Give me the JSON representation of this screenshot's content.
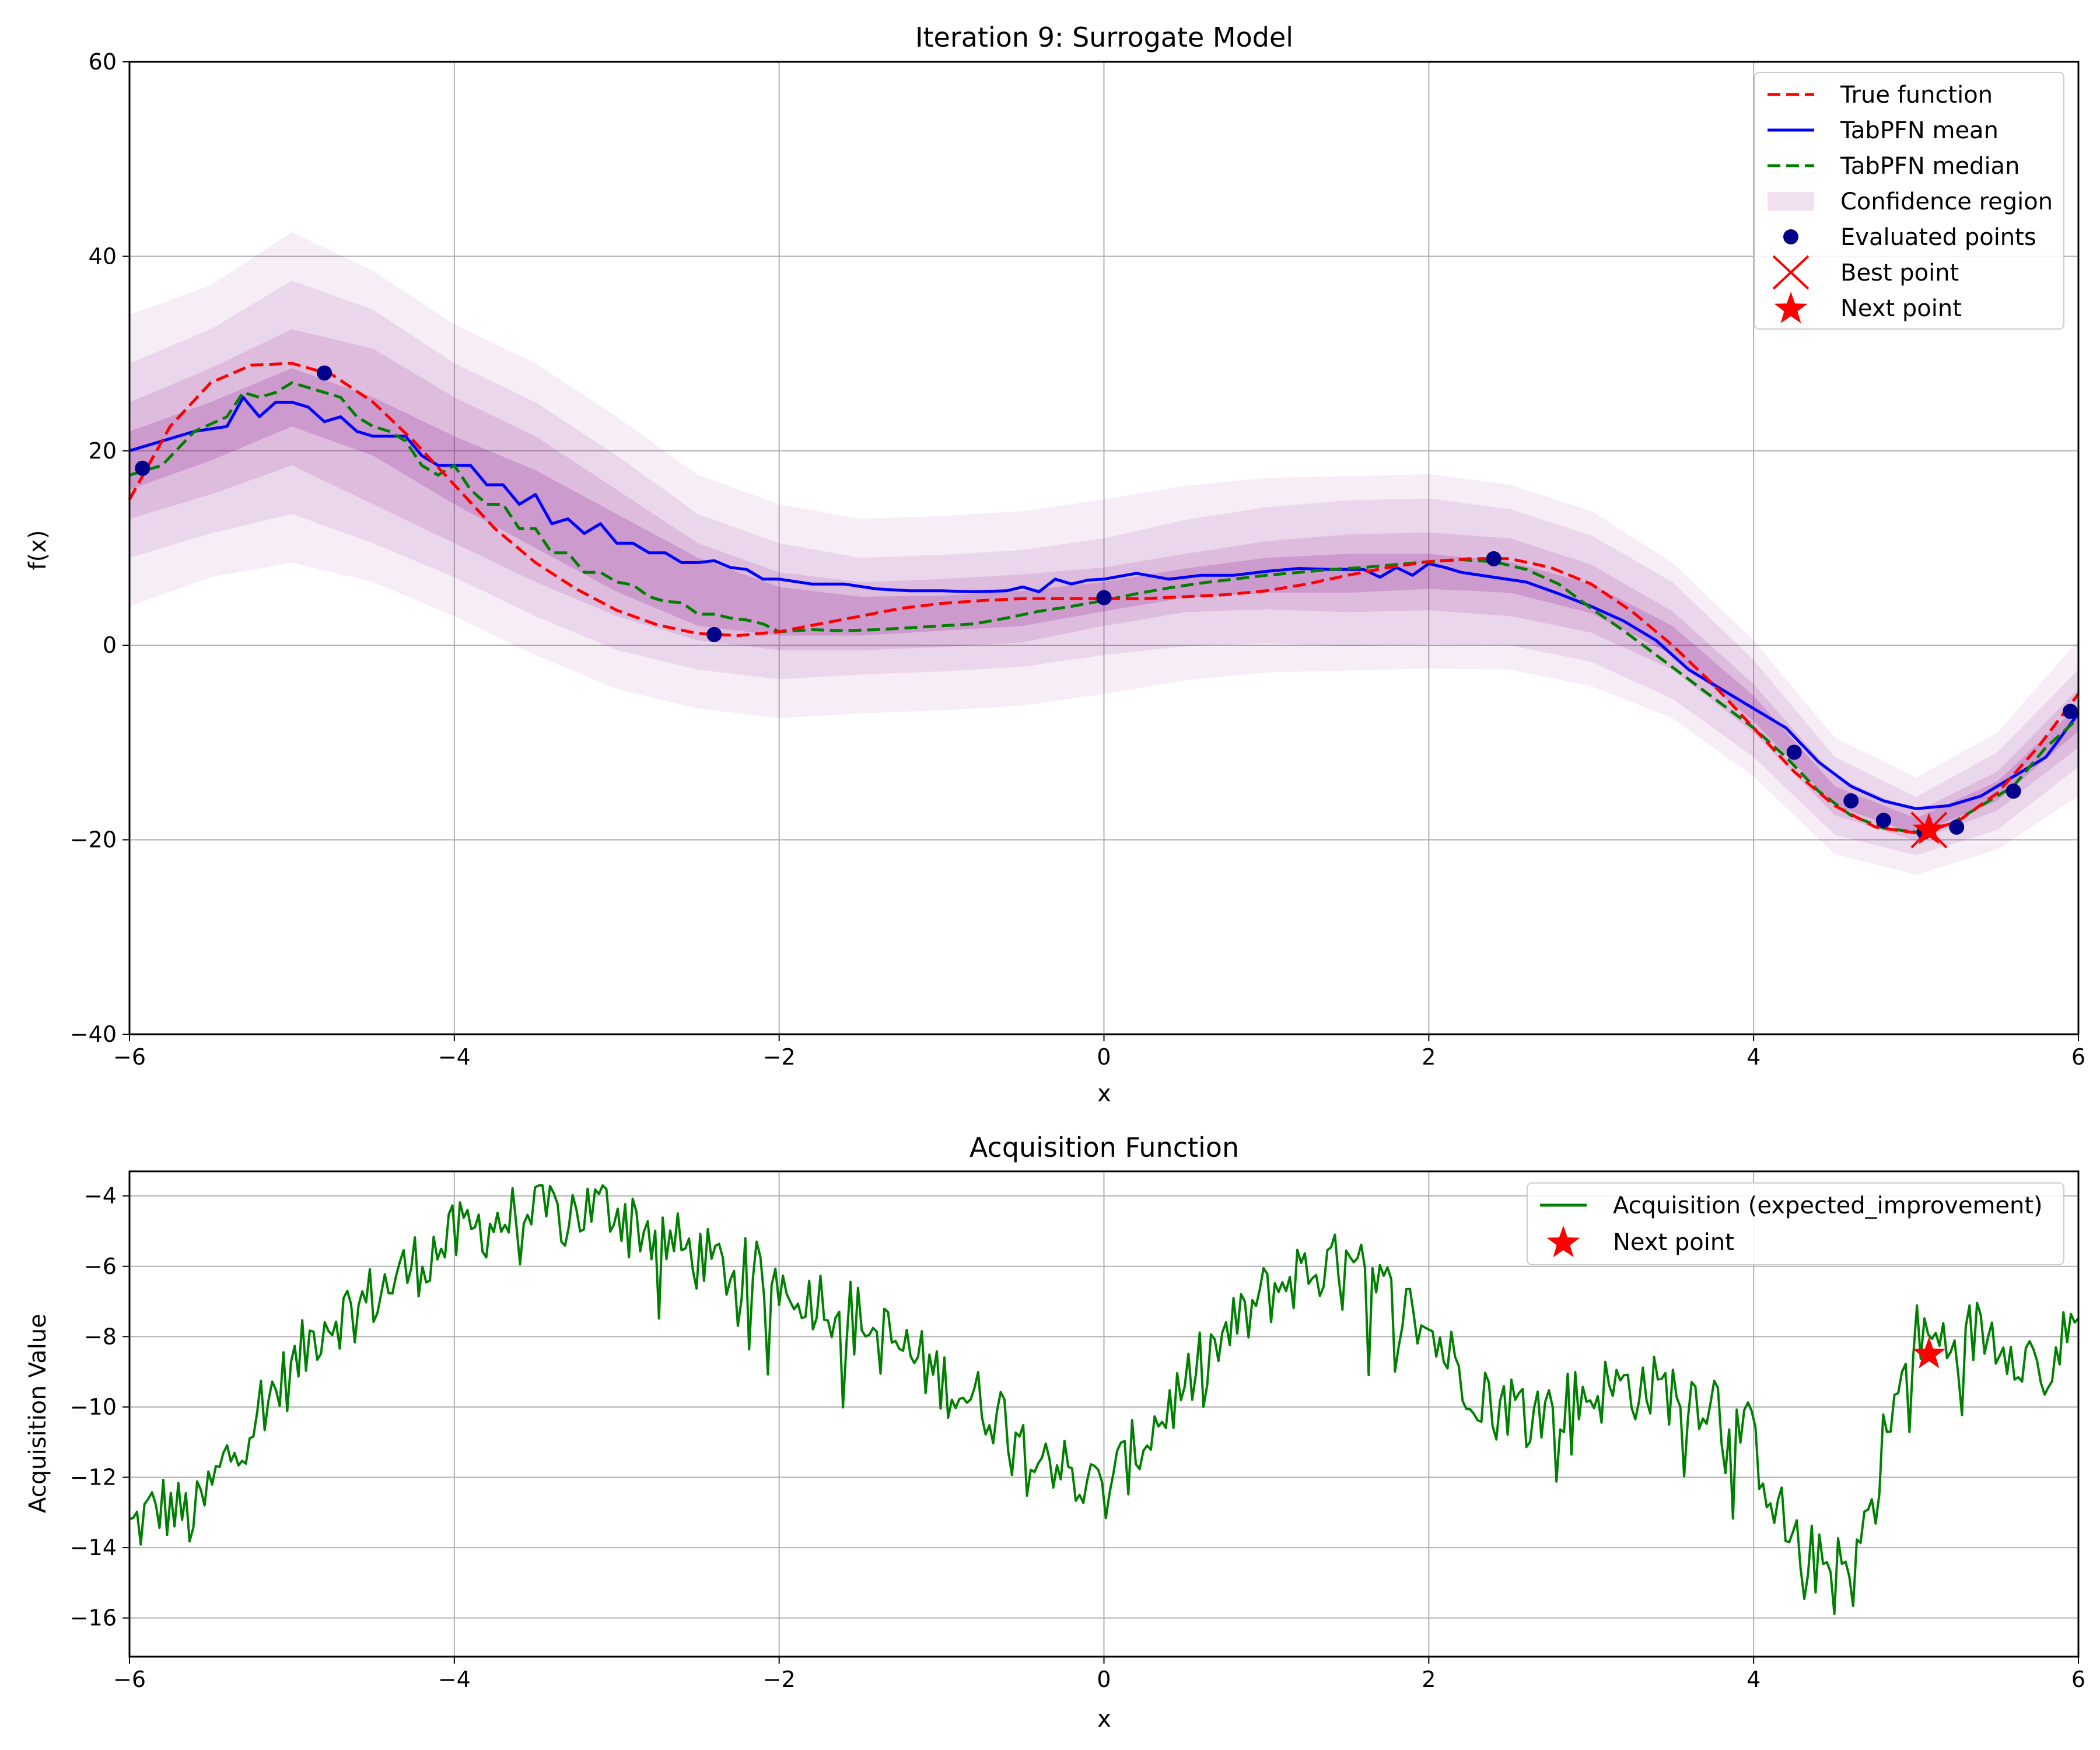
{
  "chart_data": [
    {
      "type": "line",
      "title": "Iteration 9: Surrogate Model",
      "xlabel": "x",
      "ylabel": "f(x)",
      "xlim": [
        -6,
        6
      ],
      "ylim": [
        -40,
        60
      ],
      "xticks": [
        -6,
        -4,
        -2,
        0,
        2,
        4,
        6
      ],
      "yticks": [
        -40,
        -20,
        0,
        20,
        40,
        60
      ],
      "xtick_labels": [
        "−6",
        "−4",
        "−2",
        "0",
        "2",
        "4",
        "6"
      ],
      "ytick_labels": [
        "−40",
        "−20",
        "0",
        "20",
        "40",
        "60"
      ],
      "grid": true,
      "legend_position": "top-right",
      "legend": [
        {
          "label": "True function",
          "kind": "line",
          "color": "#ff0000",
          "dash": "dashed"
        },
        {
          "label": "TabPFN mean",
          "kind": "line",
          "color": "#0000ff",
          "dash": "solid"
        },
        {
          "label": "TabPFN median",
          "kind": "line",
          "color": "#008000",
          "dash": "dashed"
        },
        {
          "label": "Confidence region",
          "kind": "area",
          "color": "#800080"
        },
        {
          "label": "Evaluated points",
          "kind": "dot",
          "color": "#00008b"
        },
        {
          "label": "Best point",
          "kind": "x",
          "color": "#ff0000"
        },
        {
          "label": "Next point",
          "kind": "star",
          "color": "#ff0000"
        }
      ],
      "series": {
        "true_function": {
          "x": [
            -6,
            -5.75,
            -5.5,
            -5.25,
            -5,
            -4.75,
            -4.5,
            -4.25,
            -4,
            -3.75,
            -3.5,
            -3.25,
            -3,
            -2.75,
            -2.5,
            -2.25,
            -2,
            -1.75,
            -1.5,
            -1.25,
            -1,
            -0.75,
            -0.5,
            -0.25,
            0,
            0.25,
            0.5,
            0.75,
            1,
            1.25,
            1.5,
            1.75,
            2,
            2.25,
            2.5,
            2.75,
            3,
            3.25,
            3.5,
            3.75,
            4,
            4.25,
            4.5,
            4.75,
            5,
            5.25,
            5.5,
            5.75,
            6
          ],
          "y": [
            15,
            22.5,
            27,
            28.8,
            29,
            27.8,
            25,
            21,
            16.5,
            12,
            8.5,
            5.8,
            3.6,
            2.1,
            1.2,
            1.0,
            1.4,
            2.2,
            3.0,
            3.8,
            4.3,
            4.6,
            4.8,
            4.8,
            4.8,
            4.8,
            5.0,
            5.2,
            5.6,
            6.3,
            7.2,
            8.0,
            8.6,
            8.9,
            8.9,
            8.0,
            6.3,
            3.5,
            0.0,
            -4.0,
            -8.5,
            -13.0,
            -16.5,
            -18.7,
            -19.3,
            -18.2,
            -15.2,
            -10.5,
            -5.0
          ]
        },
        "mean": {
          "x": [
            -6,
            -5.8,
            -5.6,
            -5.4,
            -5.3,
            -5.2,
            -5.1,
            -5.0,
            -4.9,
            -4.8,
            -4.7,
            -4.6,
            -4.5,
            -4.4,
            -4.3,
            -4.2,
            -4.1,
            -4.0,
            -3.9,
            -3.8,
            -3.7,
            -3.6,
            -3.5,
            -3.4,
            -3.3,
            -3.2,
            -3.1,
            -3.0,
            -2.9,
            -2.8,
            -2.7,
            -2.6,
            -2.5,
            -2.4,
            -2.3,
            -2.2,
            -2.1,
            -2.0,
            -1.8,
            -1.6,
            -1.4,
            -1.2,
            -1.0,
            -0.8,
            -0.6,
            -0.5,
            -0.4,
            -0.3,
            -0.2,
            -0.1,
            0.0,
            0.2,
            0.4,
            0.6,
            0.8,
            1.0,
            1.2,
            1.4,
            1.6,
            1.7,
            1.8,
            1.9,
            2.0,
            2.1,
            2.2,
            2.4,
            2.6,
            2.8,
            3.0,
            3.2,
            3.4,
            3.6,
            3.8,
            4.0,
            4.2,
            4.4,
            4.6,
            4.8,
            5.0,
            5.2,
            5.4,
            5.6,
            5.8,
            6.0
          ],
          "y": [
            20,
            21,
            22,
            22.5,
            25.5,
            23.5,
            25,
            25,
            24.5,
            23,
            23.5,
            22,
            21.5,
            21.5,
            21.5,
            19.5,
            18.5,
            18.5,
            18.5,
            16.5,
            16.5,
            14.5,
            15.5,
            12.5,
            13,
            11.5,
            12.5,
            10.5,
            10.5,
            9.5,
            9.5,
            8.5,
            8.5,
            8.7,
            8.0,
            7.8,
            6.8,
            6.8,
            6.3,
            6.3,
            5.8,
            5.6,
            5.6,
            5.5,
            5.6,
            6.0,
            5.5,
            6.8,
            6.3,
            6.7,
            6.8,
            7.4,
            6.8,
            7.2,
            7.2,
            7.6,
            7.9,
            7.8,
            7.8,
            7.0,
            8.0,
            7.2,
            8.4,
            8.0,
            7.5,
            7.0,
            6.5,
            5.3,
            4.0,
            2.5,
            0.5,
            -2.5,
            -4.5,
            -6.5,
            -8.5,
            -12,
            -14.5,
            -16,
            -16.8,
            -16.5,
            -15.5,
            -13.5,
            -11.5,
            -7.0
          ]
        },
        "median": {
          "x": [
            -6,
            -5.8,
            -5.6,
            -5.4,
            -5.3,
            -5.2,
            -5.1,
            -5.0,
            -4.9,
            -4.8,
            -4.7,
            -4.6,
            -4.5,
            -4.4,
            -4.3,
            -4.2,
            -4.1,
            -4.0,
            -3.9,
            -3.8,
            -3.7,
            -3.6,
            -3.5,
            -3.4,
            -3.3,
            -3.2,
            -3.1,
            -3.0,
            -2.9,
            -2.8,
            -2.7,
            -2.6,
            -2.5,
            -2.4,
            -2.3,
            -2.2,
            -2.1,
            -2.0,
            -1.8,
            -1.6,
            -1.4,
            -1.2,
            -1.0,
            -0.8,
            -0.6,
            -0.4,
            -0.2,
            0.0,
            0.2,
            0.4,
            0.6,
            0.8,
            1.0,
            1.2,
            1.4,
            1.6,
            1.8,
            2.0,
            2.2,
            2.4,
            2.6,
            2.8,
            3.0,
            3.2,
            3.4,
            3.6,
            3.8,
            4.0,
            4.2,
            4.4,
            4.6,
            4.8,
            5.0,
            5.2,
            5.4,
            5.6,
            5.8,
            6.0
          ],
          "y": [
            17.5,
            18.5,
            22,
            23.5,
            26,
            25.5,
            26,
            27,
            26.5,
            26,
            25.5,
            23.5,
            22.5,
            22,
            21,
            18.5,
            17.5,
            18.5,
            16,
            14.5,
            14.5,
            12,
            12,
            9.5,
            9.5,
            7.5,
            7.5,
            6.5,
            6.2,
            5.0,
            4.5,
            4.4,
            3.2,
            3.2,
            2.8,
            2.6,
            2.2,
            1.4,
            1.6,
            1.5,
            1.6,
            1.8,
            2.0,
            2.2,
            2.8,
            3.5,
            4.0,
            4.6,
            5.3,
            5.9,
            6.4,
            6.8,
            7.2,
            7.5,
            7.8,
            8.0,
            8.3,
            8.6,
            8.8,
            8.6,
            7.8,
            6.3,
            3.8,
            1.5,
            -1.0,
            -3.5,
            -6.0,
            -8.5,
            -11.5,
            -15.0,
            -17.5,
            -18.8,
            -19.2,
            -18.5,
            -16.5,
            -14.5,
            -10.5,
            -7.5
          ]
        },
        "evaluated_points": {
          "x": [
            -5.92,
            -4.8,
            -2.4,
            0.0,
            2.4,
            4.25,
            4.6,
            4.8,
            5.05,
            5.25,
            5.6,
            5.95
          ],
          "y": [
            18.2,
            28.0,
            1.1,
            4.9,
            8.9,
            -11.0,
            -16.0,
            -18.0,
            -19.2,
            -18.7,
            -15.0,
            -6.8
          ]
        },
        "best_point": {
          "x": 5.08,
          "y": -19.0
        },
        "next_point": {
          "x": 5.08,
          "y": -19.0
        },
        "confidence_bands": {
          "x": [
            -6,
            -5.5,
            -5,
            -4.5,
            -4,
            -3.5,
            -3,
            -2.5,
            -2,
            -1.5,
            -1,
            -0.5,
            0,
            0.5,
            1,
            1.5,
            2,
            2.5,
            3,
            3.5,
            4,
            4.5,
            5,
            5.5,
            6
          ],
          "center": [
            19,
            22,
            25.5,
            22.5,
            18,
            14,
            9.5,
            5.5,
            3.5,
            3,
            3.3,
            3.8,
            5,
            6.4,
            7.2,
            7.4,
            7.6,
            7.0,
            4.8,
            0.5,
            -6.5,
            -15.5,
            -18.6,
            -15,
            -7.5
          ],
          "half_widths": [
            [
              3,
              3,
              3,
              3,
              3.5,
              4,
              4,
              3.5,
              2.5,
              2,
              1.8,
              1.8,
              1.5,
              1.5,
              1.8,
              2.0,
              1.8,
              1.6,
              1.5,
              1.5,
              1.3,
              1.0,
              0.8,
              1.0,
              1.3
            ],
            [
              6,
              6.5,
              7,
              8,
              7.5,
              7.5,
              6.5,
              5,
              4,
              3.5,
              3.5,
              3.5,
              3,
              3,
              3.5,
              4,
              4,
              4,
              3.5,
              3,
              2.5,
              2,
              1.5,
              2,
              3
            ],
            [
              10,
              10.5,
              12,
              12,
              11,
              11,
              10,
              8,
              7,
              6,
              6,
              6,
              6,
              6.5,
              7,
              7.5,
              7.5,
              7,
              6.5,
              6,
              5,
              4,
              3,
              4,
              5
            ],
            [
              15,
              15,
              17,
              16,
              15,
              15,
              14,
              12,
              11,
              10,
              10,
              10,
              10,
              10,
              10,
              10,
              10,
              9.5,
              9,
              8,
              7,
              6,
              5,
              6,
              8
            ]
          ],
          "opacities": [
            0.18,
            0.12,
            0.09,
            0.07
          ]
        }
      }
    },
    {
      "type": "line",
      "title": "Acquisition Function",
      "xlabel": "x",
      "ylabel": "Acquisition Value",
      "xlim": [
        -6,
        6
      ],
      "ylim": [
        -17.1,
        -3.3
      ],
      "xticks": [
        -6,
        -4,
        -2,
        0,
        2,
        4,
        6
      ],
      "yticks": [
        -16,
        -14,
        -12,
        -10,
        -8,
        -6,
        -4
      ],
      "xtick_labels": [
        "−6",
        "−4",
        "−2",
        "0",
        "2",
        "4",
        "6"
      ],
      "ytick_labels": [
        "−16",
        "−14",
        "−12",
        "−10",
        "−8",
        "−6",
        "−4"
      ],
      "grid": true,
      "legend_position": "top-right",
      "legend": [
        {
          "label": "Acquisition (expected_improvement)",
          "kind": "line",
          "color": "#008000",
          "dash": "solid"
        },
        {
          "label": "Next point",
          "kind": "star",
          "color": "#ff0000"
        }
      ],
      "series": {
        "acquisition": {
          "anchors_x": [
            -6,
            -5.8,
            -5.6,
            -5.4,
            -5.2,
            -5.0,
            -4.8,
            -4.6,
            -4.4,
            -4.2,
            -4.0,
            -3.8,
            -3.6,
            -3.4,
            -3.2,
            -3.0,
            -2.8,
            -2.6,
            -2.4,
            -2.2,
            -2.0,
            -1.8,
            -1.6,
            -1.4,
            -1.2,
            -1.0,
            -0.8,
            -0.6,
            -0.4,
            -0.2,
            0.0,
            0.2,
            0.4,
            0.6,
            0.8,
            1.0,
            1.2,
            1.4,
            1.6,
            1.8,
            2.0,
            2.2,
            2.4,
            2.6,
            2.8,
            3.0,
            3.2,
            3.4,
            3.6,
            3.8,
            4.0,
            4.2,
            4.4,
            4.6,
            4.8,
            5.0,
            5.2,
            5.4,
            5.6,
            5.8,
            6.0
          ],
          "anchors_y": [
            -13.5,
            -12.8,
            -13.2,
            -11.5,
            -10.0,
            -9.0,
            -7.5,
            -7.2,
            -6.5,
            -5.8,
            -5.2,
            -4.8,
            -4.6,
            -4.5,
            -4.4,
            -4.3,
            -5.0,
            -5.5,
            -6.0,
            -6.2,
            -6.4,
            -6.8,
            -7.2,
            -7.8,
            -8.5,
            -9.2,
            -9.8,
            -10.3,
            -11.0,
            -12.0,
            -12.5,
            -11.2,
            -10.0,
            -8.8,
            -7.8,
            -6.8,
            -6.2,
            -6.0,
            -6.3,
            -7.0,
            -7.8,
            -9.0,
            -9.8,
            -10.0,
            -10.0,
            -9.6,
            -9.4,
            -9.5,
            -9.6,
            -9.8,
            -11.0,
            -13.5,
            -14.5,
            -14.8,
            -11.0,
            -8.0,
            -8.2,
            -7.8,
            -8.2,
            -9.0,
            -7.5
          ],
          "noise_amplitude": 1.0,
          "samples": 520,
          "color": "#008000"
        },
        "next_point": {
          "x": 5.08,
          "y": -8.5
        }
      }
    }
  ]
}
